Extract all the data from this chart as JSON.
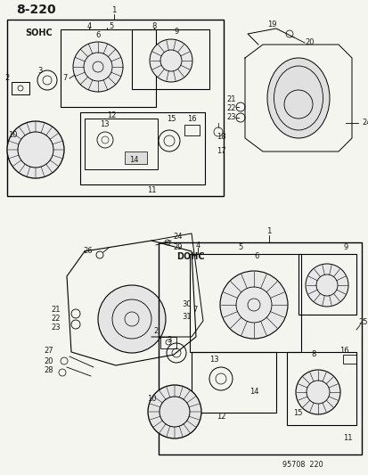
{
  "title": "8−220",
  "bg_color": "#f5f5f0",
  "line_color": "#1a1a1a",
  "text_color": "#1a1a1a",
  "watermark": "95708  220",
  "sohc_label": "SOHC",
  "dohc_label": "DOHC",
  "fig_width": 4.14,
  "fig_height": 5.33,
  "dpi": 100
}
